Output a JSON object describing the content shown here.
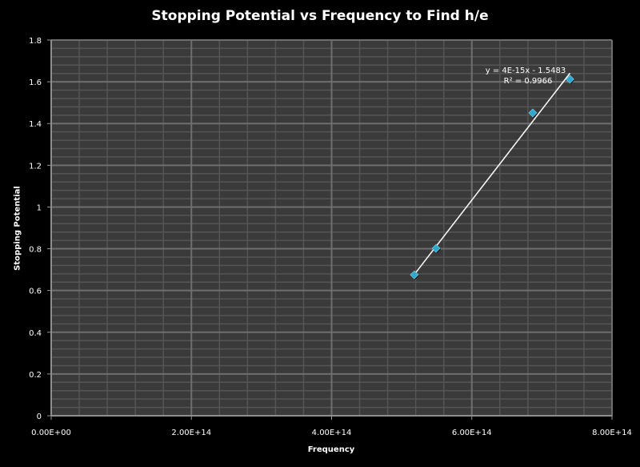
{
  "chart_data": {
    "type": "scatter",
    "title": "Stopping Potential vs Frequency to Find h/e",
    "xlabel": "Frequency",
    "ylabel": "Stopping Potential",
    "xlim": [
      0,
      800000000000000.0
    ],
    "ylim": [
      0,
      1.8
    ],
    "x_ticks": [
      "0.00E+00",
      "2.00E+14",
      "4.00E+14",
      "6.00E+14",
      "8.00E+14"
    ],
    "x_tick_values": [
      0,
      200000000000000.0,
      400000000000000.0,
      600000000000000.0,
      800000000000000.0
    ],
    "y_ticks": [
      "0",
      "0.2",
      "0.4",
      "0.6",
      "0.8",
      "1",
      "1.2",
      "1.4",
      "1.6",
      "1.8"
    ],
    "y_tick_values": [
      0,
      0.2,
      0.4,
      0.6,
      0.8,
      1,
      1.2,
      1.4,
      1.6,
      1.8
    ],
    "grid": true,
    "series": [
      {
        "x": [
          518000000000000.0,
          549000000000000.0,
          687000000000000.0,
          740000000000000.0
        ],
        "y": [
          0.675,
          0.802,
          1.451,
          1.612
        ],
        "color": "#2fa8d0",
        "marker": "diamond"
      }
    ],
    "trendline": {
      "type": "linear",
      "equation": "y = 4E-15x - 1.5483",
      "r_squared": "R² = 0.9966",
      "color": "#ffffff"
    },
    "colors": {
      "background": "#000000",
      "plot_area": "#3a3a3a",
      "grid": "#6e6e6e"
    }
  }
}
